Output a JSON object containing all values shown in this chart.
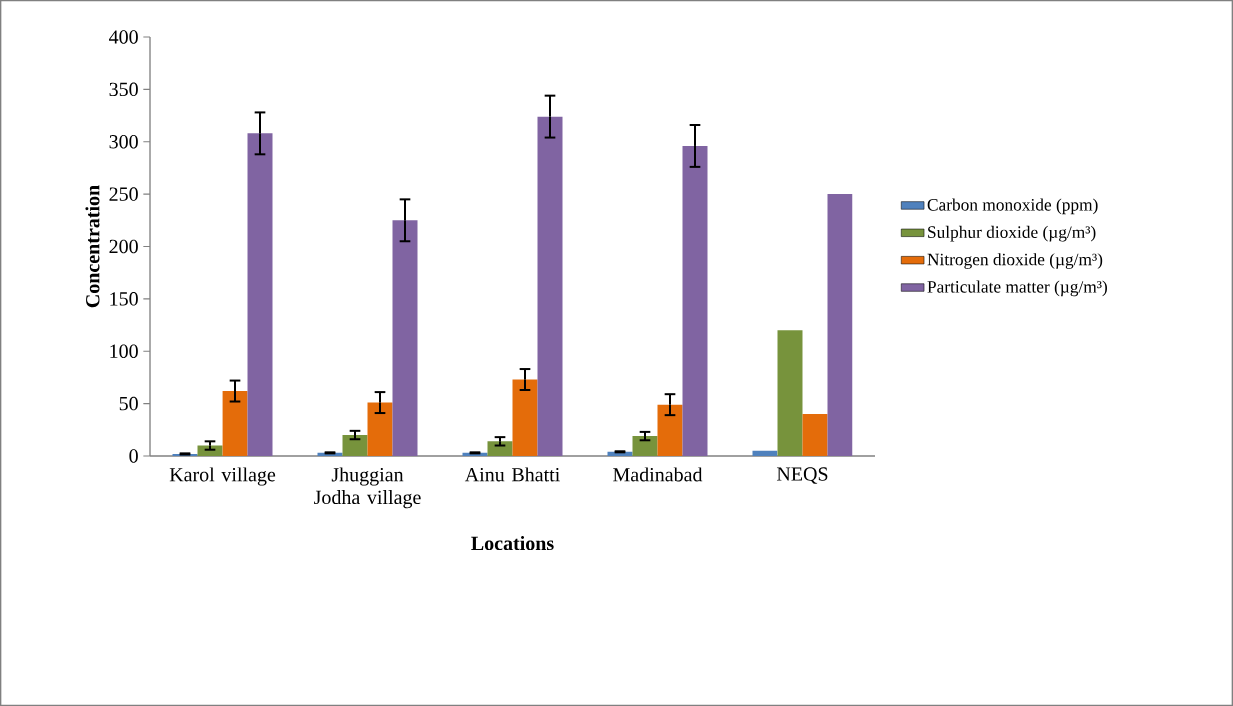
{
  "chart_data": {
    "type": "bar",
    "xlabel": "Locations",
    "ylabel": "Concentration",
    "categories": [
      "Karol village",
      "Jhuggian Jodha village",
      "Ainu Bhatti",
      "Madinabad",
      "NEQS"
    ],
    "series": [
      {
        "name": "Carbon monoxide (ppm)",
        "color": "#4f81bd",
        "values": [
          2,
          3,
          3,
          4,
          5
        ],
        "errors": [
          0.5,
          0.5,
          0.5,
          0.5,
          null
        ]
      },
      {
        "name": "Sulphur dioxide (µg/m³)",
        "color": "#77933c",
        "values": [
          10,
          20,
          14,
          19,
          120
        ],
        "errors": [
          4,
          4,
          4,
          4,
          null
        ]
      },
      {
        "name": "Nitrogen dioxide (µg/m³)",
        "color": "#e46c0a",
        "values": [
          62,
          51,
          73,
          49,
          40
        ],
        "errors": [
          10,
          10,
          10,
          10,
          null
        ]
      },
      {
        "name": "Particulate matter (µg/m³)",
        "color": "#8064a2",
        "values": [
          308,
          225,
          324,
          296,
          250
        ],
        "errors": [
          20,
          20,
          20,
          20,
          null
        ]
      }
    ],
    "ylim": [
      0,
      400
    ],
    "yticks": [
      0,
      50,
      100,
      150,
      200,
      250,
      300,
      350,
      400
    ],
    "grid": false,
    "legend": "right"
  }
}
